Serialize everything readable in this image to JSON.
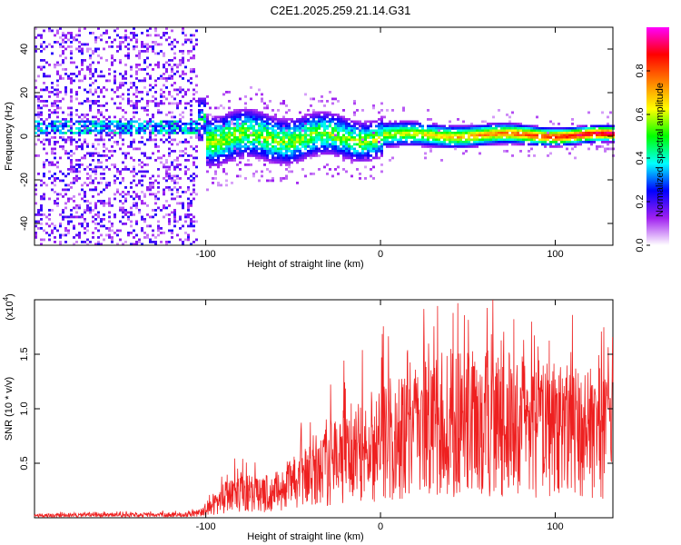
{
  "chart_data": [
    {
      "type": "heatmap",
      "title": "C2E1.2025.259.21.14.G31",
      "xlabel": "Height of straight line (km)",
      "ylabel": "Frequency (Hz)",
      "xlim": [
        -198,
        133
      ],
      "ylim": [
        -50,
        50
      ],
      "xticks": [
        -100,
        0,
        100
      ],
      "yticks": [
        -40,
        -20,
        0,
        20,
        40
      ],
      "grid": false,
      "colorbar": {
        "label": "Normalized spectral amplitude",
        "range": [
          0.0,
          1.0
        ],
        "ticks": [
          "0.0",
          "0.2",
          "0.4",
          "0.6",
          "0.8"
        ],
        "colormap": [
          "#ffffff",
          "#a020f0",
          "#0000ff",
          "#00ffff",
          "#00ff00",
          "#ffff00",
          "#ff8000",
          "#ff0000",
          "#ff00ff"
        ]
      },
      "features": [
        {
          "region": "x < -105",
          "description": "broadband noise over all frequencies",
          "amplitude": 0.1
        },
        {
          "region": "-105 to -100",
          "center_freq_hz": 10,
          "amplitude": 0.4
        },
        {
          "region": "-100 to 0",
          "center_freq_hz": 0,
          "freq_width_hz": 12,
          "amplitude": 0.45
        },
        {
          "region": "0 to 133",
          "center_freq_hz": 1,
          "freq_width_hz": 5,
          "amplitude": 0.85
        }
      ]
    },
    {
      "type": "line",
      "series": [
        {
          "name": "SNR",
          "color": "#ee2020"
        }
      ],
      "xlabel": "Height of straight line (km)",
      "ylabel": "SNR (10 * v/v)",
      "multiplier_label": "(x10",
      "multiplier_exp": "4",
      "xlim": [
        -198,
        133
      ],
      "ylim": [
        0,
        20000
      ],
      "xticks": [
        -100,
        0,
        100
      ],
      "yticks": [
        0.5,
        1.0,
        1.5
      ],
      "ytick_labels": [
        "0.5",
        "1.0",
        "1.5"
      ],
      "envelope_points": [
        [
          -198,
          300
        ],
        [
          -150,
          350
        ],
        [
          -110,
          400
        ],
        [
          -100,
          900
        ],
        [
          -90,
          2500
        ],
        [
          -80,
          3500
        ],
        [
          -70,
          3000
        ],
        [
          -60,
          3500
        ],
        [
          -50,
          4500
        ],
        [
          -40,
          6000
        ],
        [
          -30,
          7000
        ],
        [
          -20,
          8500
        ],
        [
          -10,
          9000
        ],
        [
          0,
          10000
        ],
        [
          10,
          10500
        ],
        [
          20,
          11000
        ],
        [
          30,
          12000
        ],
        [
          40,
          12500
        ],
        [
          60,
          12500
        ],
        [
          80,
          12000
        ],
        [
          100,
          11500
        ],
        [
          120,
          11000
        ],
        [
          133,
          11000
        ]
      ]
    }
  ]
}
